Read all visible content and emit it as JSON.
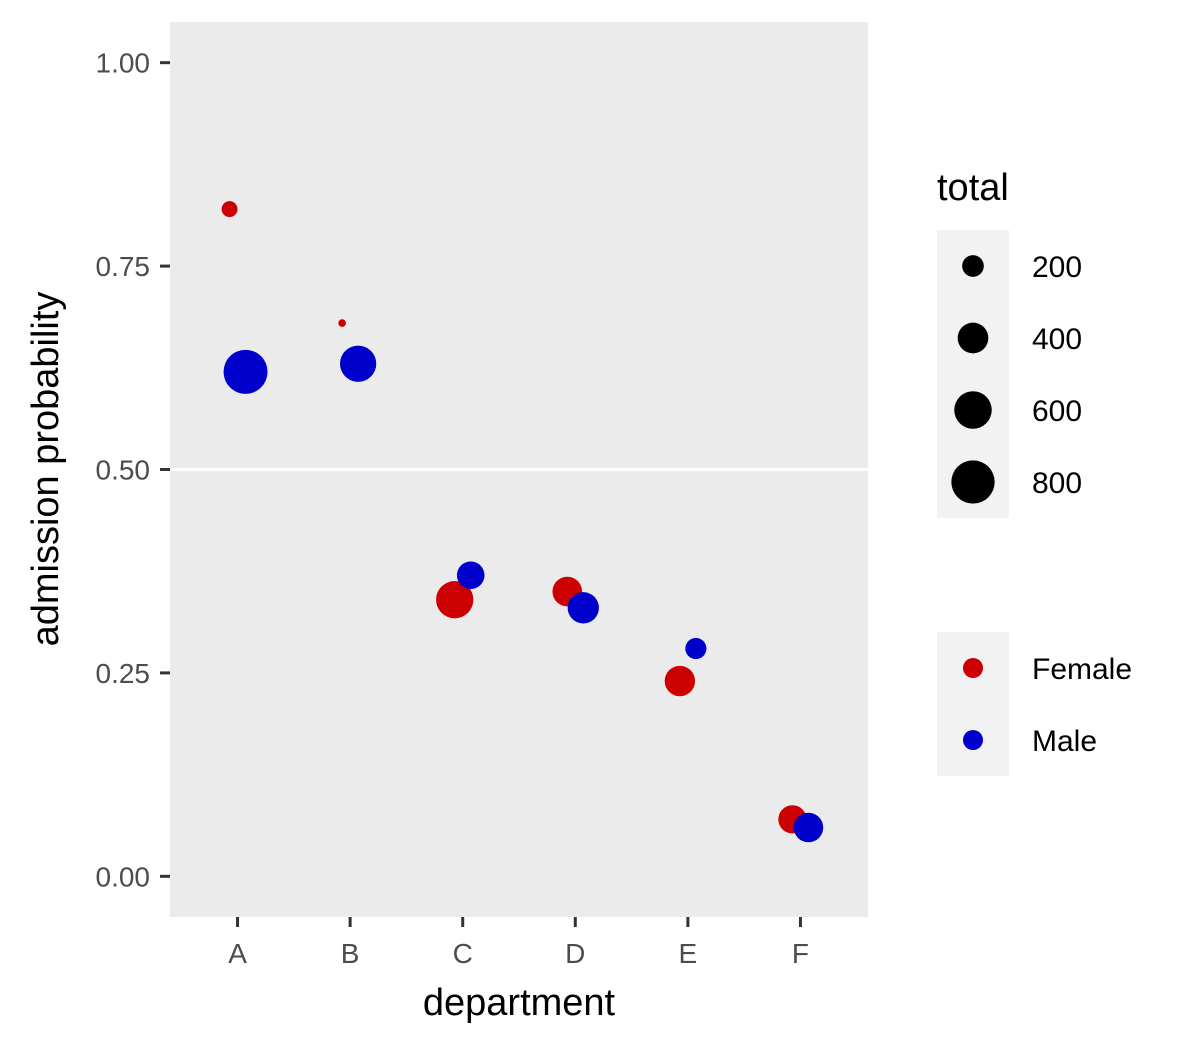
{
  "chart_data": {
    "type": "scatter",
    "xlabel": "department",
    "ylabel": "admission probability",
    "categories": [
      "A",
      "B",
      "C",
      "D",
      "E",
      "F"
    ],
    "ylim": [
      -0.05,
      1.05
    ],
    "yticks": [
      0.0,
      0.25,
      0.5,
      0.75,
      1.0
    ],
    "ytick_labels": [
      "0.00",
      "0.25",
      "0.50",
      "0.75",
      "1.00"
    ],
    "reference_line_y": 0.5,
    "grid": false,
    "panel_background": "#ebebeb",
    "series": [
      {
        "name": "Female",
        "color": "#cc0000",
        "x": [
          "A",
          "B",
          "C",
          "D",
          "E",
          "F"
        ],
        "y": [
          0.82,
          0.68,
          0.34,
          0.35,
          0.24,
          0.07
        ],
        "total": [
          108,
          25,
          593,
          375,
          393,
          341
        ]
      },
      {
        "name": "Male",
        "color": "#0000cc",
        "x": [
          "A",
          "B",
          "C",
          "D",
          "E",
          "F"
        ],
        "y": [
          0.62,
          0.63,
          0.37,
          0.33,
          0.28,
          0.06
        ],
        "total": [
          825,
          560,
          325,
          417,
          191,
          373
        ]
      }
    ],
    "size_legend": {
      "title": "total",
      "values": [
        200,
        400,
        600,
        800
      ],
      "labels": [
        "200",
        "400",
        "600",
        "800"
      ]
    },
    "color_legend": {
      "labels": [
        "Female",
        "Male"
      ],
      "colors": [
        "#cc0000",
        "#0000cc"
      ]
    }
  }
}
